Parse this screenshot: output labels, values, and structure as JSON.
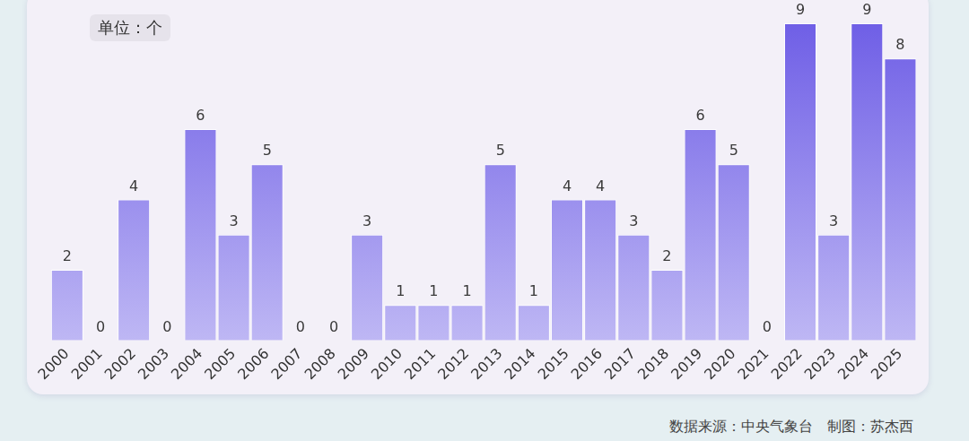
{
  "chart_data": {
    "type": "bar",
    "subtitle": "单位：个",
    "annotations": [
      "数据来源：中央气象台　制图：苏杰西"
    ],
    "categories": [
      "2000",
      "2001",
      "2002",
      "2003",
      "2004",
      "2005",
      "2006",
      "2007",
      "2008",
      "2009",
      "2010",
      "2011",
      "2012",
      "2013",
      "2014",
      "2015",
      "2016",
      "2017",
      "2018",
      "2019",
      "2020",
      "2021",
      "2022",
      "2023",
      "2024",
      "2025"
    ],
    "values": [
      2,
      0,
      4,
      0,
      6,
      3,
      5,
      0,
      0,
      3,
      1,
      1,
      1,
      5,
      1,
      4,
      4,
      3,
      2,
      6,
      5,
      0,
      9,
      3,
      9,
      8
    ],
    "color": "#6f5fe6",
    "ylim": [
      0,
      9
    ],
    "grid": false,
    "data_labels": true,
    "tick_labels": "x"
  }
}
